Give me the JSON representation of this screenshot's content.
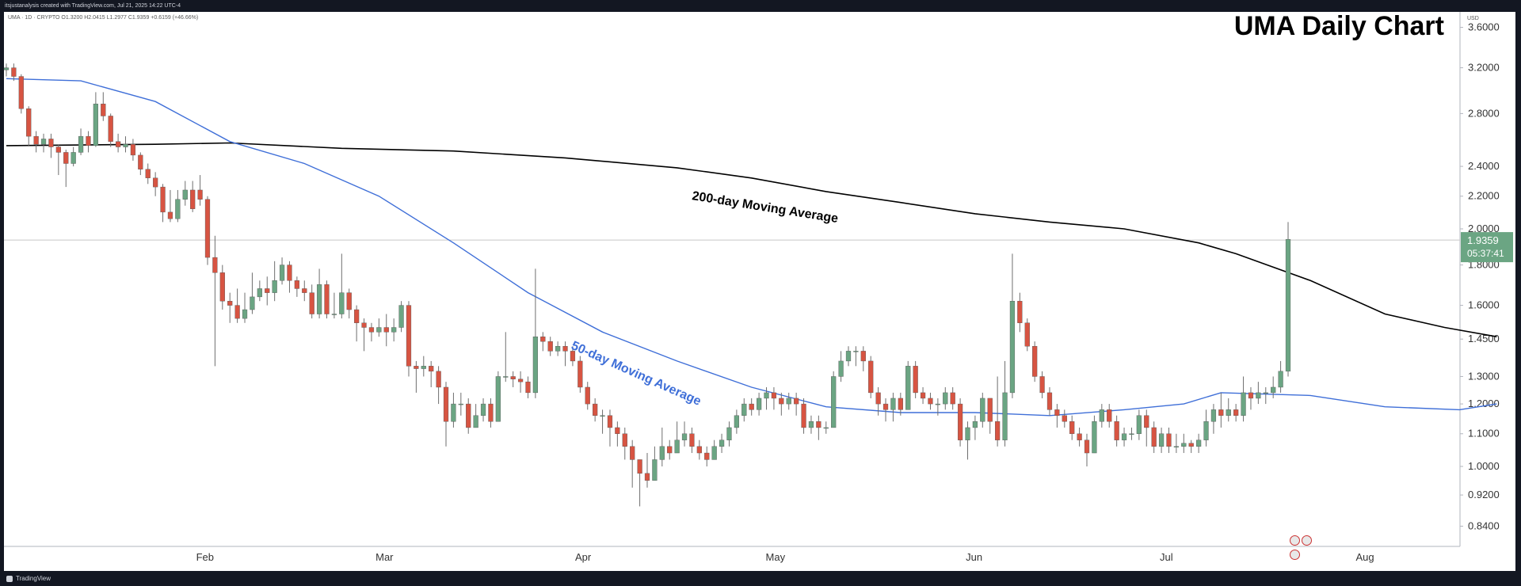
{
  "header": {
    "watermark": "itsjustanalysis created with TradingView.com, Jul 21, 2025 14:22 UTC-4",
    "ohlc": "UMA · 1D · CRYPTO  O1.3200  H2.0415  L1.2977  C1.9359  +0.6159 (+46.66%)",
    "currency": "USD"
  },
  "footer": {
    "brand": "TradingView"
  },
  "chart_data": {
    "type": "candlestick",
    "title": "UMA Daily Chart",
    "y_scale": "log",
    "ylim": [
      0.76,
      3.75
    ],
    "y_ticks": [
      "0.8400",
      "0.9200",
      "1.0000",
      "1.1000",
      "1.2000",
      "1.3000",
      "1.4500",
      "1.6000",
      "1.8000",
      "2.0000",
      "2.2000",
      "2.4000",
      "2.8000",
      "3.2000",
      "3.6000"
    ],
    "x_ticks": [
      {
        "label": "Feb",
        "day": 31
      },
      {
        "label": "Mar",
        "day": 59
      },
      {
        "label": "Apr",
        "day": 90
      },
      {
        "label": "May",
        "day": 120
      },
      {
        "label": "Jun",
        "day": 151
      },
      {
        "label": "Jul",
        "day": 181
      },
      {
        "label": "Aug",
        "day": 212
      }
    ],
    "last_price": {
      "value": "1.9359",
      "countdown": "05:37:41"
    },
    "annotations": {
      "ma200": "200-day Moving Average",
      "ma50": "50-day Moving Average"
    },
    "colors": {
      "up": "#6ba583",
      "down": "#d75442",
      "ma50": "#3f6fd8",
      "ma200": "#000000",
      "price_tag": "#6ba583"
    },
    "candles": [
      [
        3.18,
        3.2,
        3.24,
        3.12
      ],
      [
        3.2,
        3.12,
        3.24,
        3.08
      ],
      [
        3.12,
        2.84,
        3.14,
        2.8
      ],
      [
        2.84,
        2.62,
        2.86,
        2.55
      ],
      [
        2.62,
        2.56,
        2.66,
        2.5
      ],
      [
        2.56,
        2.6,
        2.64,
        2.5
      ],
      [
        2.6,
        2.54,
        2.64,
        2.46
      ],
      [
        2.54,
        2.5,
        2.56,
        2.34
      ],
      [
        2.5,
        2.42,
        2.52,
        2.26
      ],
      [
        2.42,
        2.5,
        2.54,
        2.4
      ],
      [
        2.5,
        2.62,
        2.68,
        2.48
      ],
      [
        2.62,
        2.55,
        2.66,
        2.5
      ],
      [
        2.55,
        2.88,
        2.98,
        2.54
      ],
      [
        2.88,
        2.78,
        2.98,
        2.74
      ],
      [
        2.78,
        2.58,
        2.8,
        2.54
      ],
      [
        2.58,
        2.54,
        2.64,
        2.5
      ],
      [
        2.54,
        2.56,
        2.62,
        2.5
      ],
      [
        2.56,
        2.48,
        2.6,
        2.44
      ],
      [
        2.48,
        2.38,
        2.5,
        2.34
      ],
      [
        2.38,
        2.32,
        2.42,
        2.28
      ],
      [
        2.32,
        2.26,
        2.36,
        2.2
      ],
      [
        2.26,
        2.1,
        2.28,
        2.04
      ],
      [
        2.1,
        2.06,
        2.24,
        2.04
      ],
      [
        2.06,
        2.18,
        2.24,
        2.04
      ],
      [
        2.18,
        2.24,
        2.3,
        2.14
      ],
      [
        2.24,
        2.12,
        2.3,
        2.1
      ],
      [
        2.24,
        2.18,
        2.34,
        2.14
      ],
      [
        2.18,
        1.84,
        2.2,
        1.8
      ],
      [
        1.84,
        1.76,
        1.96,
        1.34
      ],
      [
        1.76,
        1.62,
        1.8,
        1.58
      ],
      [
        1.62,
        1.6,
        1.66,
        1.52
      ],
      [
        1.6,
        1.54,
        1.68,
        1.52
      ],
      [
        1.54,
        1.58,
        1.66,
        1.52
      ],
      [
        1.58,
        1.64,
        1.76,
        1.56
      ],
      [
        1.64,
        1.68,
        1.72,
        1.62
      ],
      [
        1.68,
        1.66,
        1.74,
        1.6
      ],
      [
        1.66,
        1.72,
        1.82,
        1.62
      ],
      [
        1.72,
        1.8,
        1.84,
        1.7
      ],
      [
        1.8,
        1.72,
        1.82,
        1.66
      ],
      [
        1.72,
        1.68,
        1.74,
        1.64
      ],
      [
        1.68,
        1.66,
        1.72,
        1.62
      ],
      [
        1.66,
        1.56,
        1.7,
        1.54
      ],
      [
        1.56,
        1.7,
        1.78,
        1.54
      ],
      [
        1.7,
        1.56,
        1.72,
        1.54
      ],
      [
        1.56,
        1.56,
        1.66,
        1.54
      ],
      [
        1.56,
        1.66,
        1.86,
        1.54
      ],
      [
        1.66,
        1.58,
        1.68,
        1.54
      ],
      [
        1.58,
        1.52,
        1.6,
        1.44
      ],
      [
        1.52,
        1.5,
        1.54,
        1.4
      ],
      [
        1.5,
        1.48,
        1.52,
        1.44
      ],
      [
        1.48,
        1.5,
        1.54,
        1.46
      ],
      [
        1.5,
        1.48,
        1.56,
        1.42
      ],
      [
        1.48,
        1.5,
        1.54,
        1.44
      ],
      [
        1.5,
        1.6,
        1.62,
        1.48
      ],
      [
        1.6,
        1.34,
        1.62,
        1.3
      ],
      [
        1.34,
        1.33,
        1.36,
        1.24
      ],
      [
        1.33,
        1.34,
        1.38,
        1.3
      ],
      [
        1.34,
        1.32,
        1.36,
        1.26
      ],
      [
        1.32,
        1.26,
        1.34,
        1.2
      ],
      [
        1.26,
        1.14,
        1.28,
        1.06
      ],
      [
        1.14,
        1.2,
        1.24,
        1.12
      ],
      [
        1.2,
        1.2,
        1.24,
        1.16
      ],
      [
        1.2,
        1.12,
        1.22,
        1.1
      ],
      [
        1.12,
        1.16,
        1.2,
        1.12
      ],
      [
        1.16,
        1.2,
        1.22,
        1.14
      ],
      [
        1.2,
        1.14,
        1.22,
        1.12
      ],
      [
        1.14,
        1.3,
        1.32,
        1.14
      ],
      [
        1.3,
        1.3,
        1.48,
        1.28
      ],
      [
        1.3,
        1.29,
        1.32,
        1.26
      ],
      [
        1.29,
        1.28,
        1.32,
        1.24
      ],
      [
        1.28,
        1.24,
        1.3,
        1.22
      ],
      [
        1.24,
        1.46,
        1.78,
        1.22
      ],
      [
        1.46,
        1.44,
        1.48,
        1.4
      ],
      [
        1.44,
        1.4,
        1.46,
        1.38
      ],
      [
        1.4,
        1.42,
        1.44,
        1.38
      ],
      [
        1.42,
        1.4,
        1.44,
        1.34
      ],
      [
        1.4,
        1.36,
        1.42,
        1.34
      ],
      [
        1.36,
        1.26,
        1.38,
        1.24
      ],
      [
        1.26,
        1.2,
        1.28,
        1.18
      ],
      [
        1.2,
        1.16,
        1.22,
        1.14
      ],
      [
        1.16,
        1.16,
        1.18,
        1.1
      ],
      [
        1.16,
        1.12,
        1.18,
        1.06
      ],
      [
        1.12,
        1.1,
        1.14,
        1.06
      ],
      [
        1.1,
        1.06,
        1.12,
        1.02
      ],
      [
        1.06,
        1.02,
        1.08,
        0.94
      ],
      [
        1.02,
        0.98,
        1.02,
        0.89
      ],
      [
        0.98,
        0.96,
        1.04,
        0.94
      ],
      [
        0.96,
        1.02,
        1.06,
        0.96
      ],
      [
        1.02,
        1.06,
        1.12,
        1.0
      ],
      [
        1.06,
        1.04,
        1.08,
        1.02
      ],
      [
        1.04,
        1.08,
        1.14,
        1.04
      ],
      [
        1.08,
        1.1,
        1.14,
        1.06
      ],
      [
        1.1,
        1.06,
        1.12,
        1.04
      ],
      [
        1.06,
        1.04,
        1.08,
        1.02
      ],
      [
        1.04,
        1.02,
        1.06,
        1.0
      ],
      [
        1.02,
        1.06,
        1.08,
        1.02
      ],
      [
        1.06,
        1.08,
        1.1,
        1.04
      ],
      [
        1.08,
        1.12,
        1.14,
        1.06
      ],
      [
        1.12,
        1.16,
        1.18,
        1.1
      ],
      [
        1.16,
        1.2,
        1.22,
        1.14
      ],
      [
        1.2,
        1.18,
        1.22,
        1.16
      ],
      [
        1.18,
        1.22,
        1.24,
        1.16
      ],
      [
        1.22,
        1.24,
        1.26,
        1.18
      ],
      [
        1.24,
        1.22,
        1.26,
        1.18
      ],
      [
        1.22,
        1.2,
        1.24,
        1.16
      ],
      [
        1.2,
        1.22,
        1.24,
        1.18
      ],
      [
        1.22,
        1.2,
        1.24,
        1.16
      ],
      [
        1.2,
        1.12,
        1.22,
        1.1
      ],
      [
        1.12,
        1.14,
        1.16,
        1.1
      ],
      [
        1.14,
        1.12,
        1.16,
        1.08
      ],
      [
        1.12,
        1.12,
        1.14,
        1.1
      ],
      [
        1.12,
        1.3,
        1.32,
        1.12
      ],
      [
        1.3,
        1.36,
        1.4,
        1.28
      ],
      [
        1.36,
        1.4,
        1.42,
        1.34
      ],
      [
        1.4,
        1.4,
        1.42,
        1.34
      ],
      [
        1.4,
        1.36,
        1.42,
        1.32
      ],
      [
        1.36,
        1.24,
        1.38,
        1.22
      ],
      [
        1.24,
        1.2,
        1.26,
        1.16
      ],
      [
        1.2,
        1.18,
        1.22,
        1.14
      ],
      [
        1.18,
        1.22,
        1.24,
        1.14
      ],
      [
        1.22,
        1.18,
        1.24,
        1.16
      ],
      [
        1.18,
        1.34,
        1.36,
        1.18
      ],
      [
        1.34,
        1.24,
        1.36,
        1.22
      ],
      [
        1.24,
        1.22,
        1.26,
        1.2
      ],
      [
        1.22,
        1.2,
        1.24,
        1.18
      ],
      [
        1.2,
        1.2,
        1.22,
        1.16
      ],
      [
        1.2,
        1.24,
        1.26,
        1.18
      ],
      [
        1.24,
        1.2,
        1.26,
        1.18
      ],
      [
        1.2,
        1.08,
        1.22,
        1.06
      ],
      [
        1.08,
        1.12,
        1.14,
        1.02
      ],
      [
        1.12,
        1.14,
        1.16,
        1.08
      ],
      [
        1.14,
        1.22,
        1.24,
        1.12
      ],
      [
        1.22,
        1.14,
        1.22,
        1.1
      ],
      [
        1.14,
        1.08,
        1.3,
        1.06
      ],
      [
        1.08,
        1.24,
        1.36,
        1.06
      ],
      [
        1.24,
        1.62,
        1.86,
        1.22
      ],
      [
        1.62,
        1.52,
        1.66,
        1.48
      ],
      [
        1.52,
        1.42,
        1.54,
        1.4
      ],
      [
        1.42,
        1.3,
        1.44,
        1.28
      ],
      [
        1.3,
        1.24,
        1.32,
        1.22
      ],
      [
        1.24,
        1.18,
        1.26,
        1.16
      ],
      [
        1.18,
        1.16,
        1.2,
        1.12
      ],
      [
        1.16,
        1.14,
        1.18,
        1.12
      ],
      [
        1.14,
        1.1,
        1.16,
        1.08
      ],
      [
        1.1,
        1.08,
        1.12,
        1.06
      ],
      [
        1.08,
        1.04,
        1.1,
        1.0
      ],
      [
        1.04,
        1.14,
        1.16,
        1.04
      ],
      [
        1.14,
        1.18,
        1.2,
        1.12
      ],
      [
        1.18,
        1.14,
        1.2,
        1.12
      ],
      [
        1.14,
        1.08,
        1.16,
        1.06
      ],
      [
        1.08,
        1.1,
        1.12,
        1.06
      ],
      [
        1.1,
        1.1,
        1.12,
        1.08
      ],
      [
        1.1,
        1.16,
        1.18,
        1.08
      ],
      [
        1.16,
        1.12,
        1.18,
        1.06
      ],
      [
        1.12,
        1.06,
        1.14,
        1.04
      ],
      [
        1.06,
        1.1,
        1.12,
        1.04
      ],
      [
        1.1,
        1.06,
        1.12,
        1.04
      ],
      [
        1.06,
        1.06,
        1.1,
        1.04
      ],
      [
        1.06,
        1.07,
        1.1,
        1.04
      ],
      [
        1.07,
        1.06,
        1.08,
        1.04
      ],
      [
        1.06,
        1.08,
        1.1,
        1.04
      ],
      [
        1.08,
        1.14,
        1.18,
        1.06
      ],
      [
        1.14,
        1.18,
        1.2,
        1.1
      ],
      [
        1.18,
        1.16,
        1.24,
        1.12
      ],
      [
        1.16,
        1.18,
        1.22,
        1.14
      ],
      [
        1.18,
        1.16,
        1.2,
        1.14
      ],
      [
        1.16,
        1.24,
        1.3,
        1.14
      ],
      [
        1.24,
        1.22,
        1.26,
        1.18
      ],
      [
        1.22,
        1.24,
        1.28,
        1.2
      ],
      [
        1.24,
        1.24,
        1.26,
        1.2
      ],
      [
        1.24,
        1.26,
        1.3,
        1.22
      ],
      [
        1.26,
        1.32,
        1.36,
        1.24
      ],
      [
        1.32,
        1.94,
        2.04,
        1.3
      ]
    ],
    "ma200": [
      [
        0,
        2.55
      ],
      [
        20,
        2.56
      ],
      [
        30,
        2.57
      ],
      [
        45,
        2.53
      ],
      [
        60,
        2.51
      ],
      [
        75,
        2.46
      ],
      [
        90,
        2.39
      ],
      [
        100,
        2.32
      ],
      [
        110,
        2.23
      ],
      [
        120,
        2.16
      ],
      [
        130,
        2.09
      ],
      [
        140,
        2.04
      ],
      [
        150,
        2.0
      ],
      [
        160,
        1.92
      ],
      [
        165,
        1.86
      ],
      [
        175,
        1.72
      ],
      [
        185,
        1.56
      ],
      [
        193,
        1.5
      ],
      [
        200,
        1.46
      ]
    ],
    "ma50": [
      [
        0,
        3.1
      ],
      [
        10,
        3.08
      ],
      [
        20,
        2.9
      ],
      [
        30,
        2.58
      ],
      [
        40,
        2.42
      ],
      [
        50,
        2.2
      ],
      [
        60,
        1.92
      ],
      [
        70,
        1.66
      ],
      [
        80,
        1.48
      ],
      [
        90,
        1.36
      ],
      [
        100,
        1.26
      ],
      [
        110,
        1.19
      ],
      [
        120,
        1.17
      ],
      [
        130,
        1.17
      ],
      [
        140,
        1.16
      ],
      [
        150,
        1.18
      ],
      [
        158,
        1.2
      ],
      [
        163,
        1.24
      ],
      [
        175,
        1.23
      ],
      [
        185,
        1.19
      ],
      [
        195,
        1.18
      ],
      [
        200,
        1.2
      ]
    ]
  }
}
